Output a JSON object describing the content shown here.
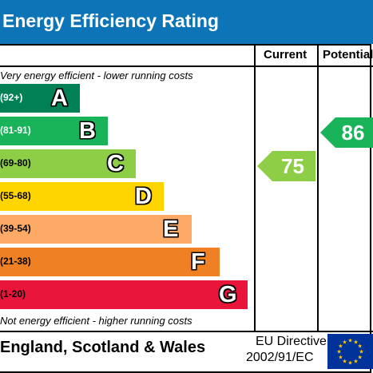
{
  "title": "Energy Efficiency Rating",
  "columns": {
    "current": "Current",
    "potential": "Potential"
  },
  "captions": {
    "top": "Very energy efficient - lower running costs",
    "bottom": "Not energy efficient - higher running costs"
  },
  "footer": {
    "region": "England, Scotland & Wales",
    "directive_line1": "EU Directive",
    "directive_line2": "2002/91/EC"
  },
  "chart_data": {
    "type": "bar",
    "title": "Energy Efficiency Rating",
    "bands": [
      {
        "letter": "A",
        "range": "(92+)",
        "color": "#008054",
        "range_color": "#ffffff"
      },
      {
        "letter": "B",
        "range": "(81-91)",
        "color": "#19b459",
        "range_color": "#ffffff"
      },
      {
        "letter": "C",
        "range": "(69-80)",
        "color": "#8dce46",
        "range_color": "#000000"
      },
      {
        "letter": "D",
        "range": "(55-68)",
        "color": "#ffd500",
        "range_color": "#000000"
      },
      {
        "letter": "E",
        "range": "(39-54)",
        "color": "#fcaa65",
        "range_color": "#000000"
      },
      {
        "letter": "F",
        "range": "(21-38)",
        "color": "#ef8023",
        "range_color": "#000000"
      },
      {
        "letter": "G",
        "range": "(1-20)",
        "color": "#e9153b",
        "range_color": "#000000"
      }
    ],
    "current": {
      "value": 75,
      "band": "C",
      "color": "#8dce46"
    },
    "potential": {
      "value": 86,
      "band": "B",
      "color": "#19b459"
    }
  }
}
